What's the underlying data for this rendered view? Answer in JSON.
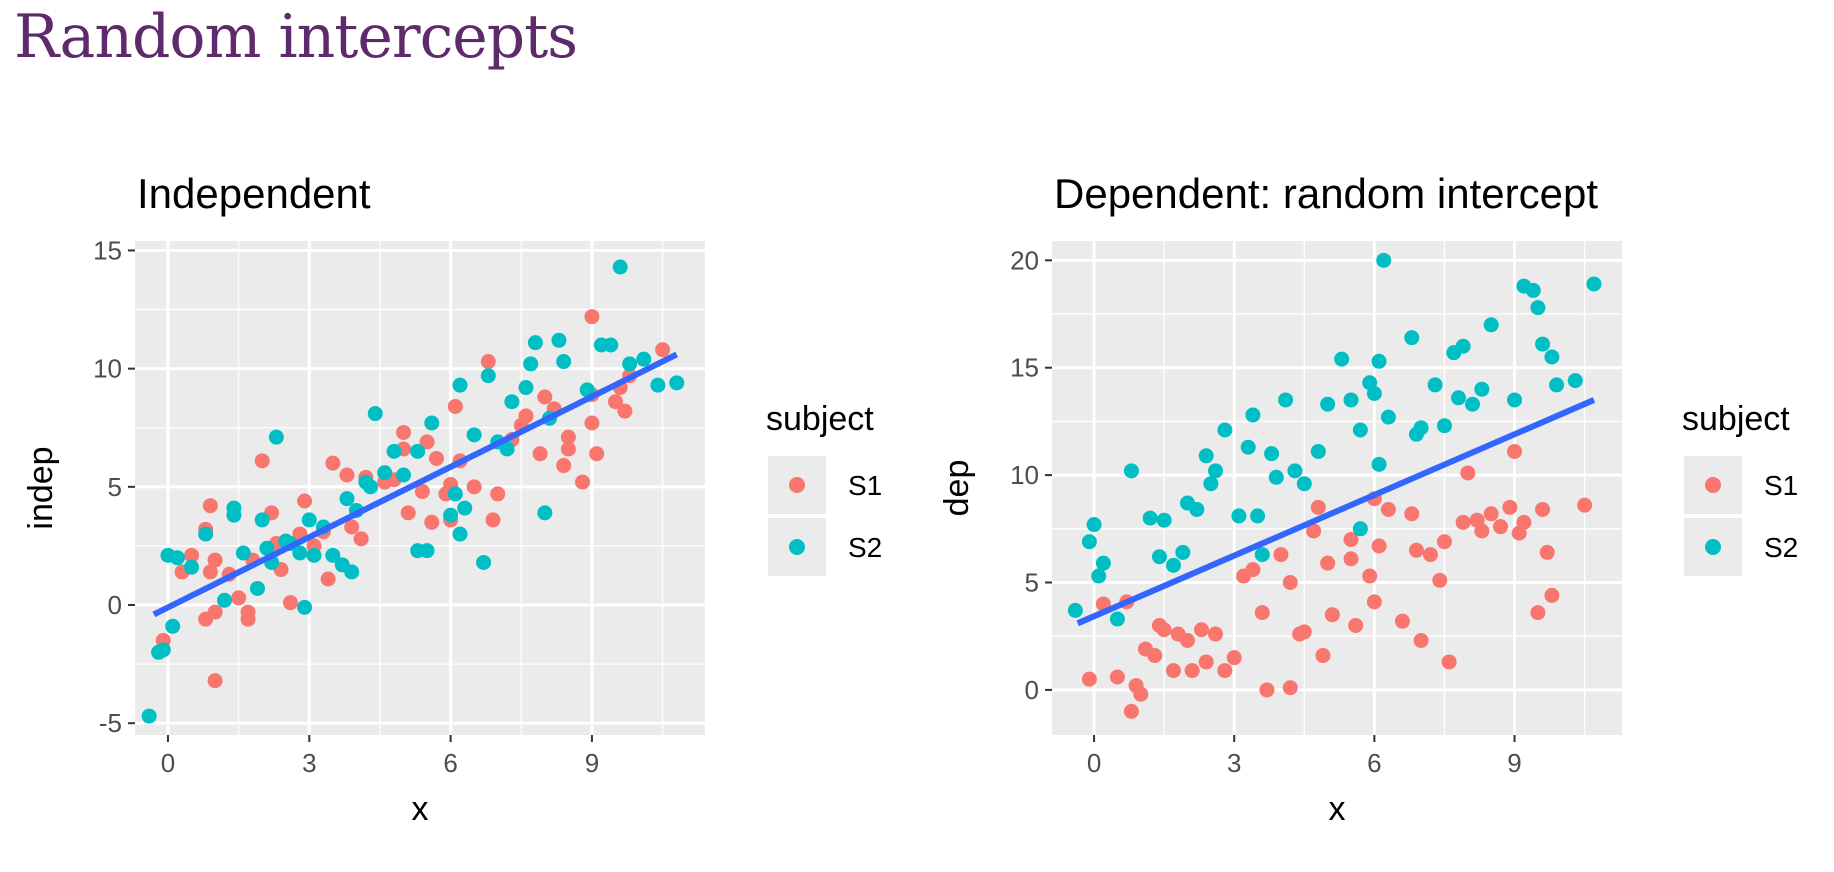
{
  "slide": {
    "title": "Random intercepts"
  },
  "colors": {
    "S1": "#f8766d",
    "S2": "#00bfc4",
    "fit_line": "#3366ff",
    "panel_bg": "#ebebeb",
    "grid": "#ffffff",
    "title": "#5e2a6c"
  },
  "chart_data": [
    {
      "type": "scatter",
      "title": "Independent",
      "xlabel": "x",
      "ylabel": "indep",
      "xlim": [
        -0.7,
        11.4
      ],
      "ylim": [
        -5.5,
        15.4
      ],
      "xticks": [
        0,
        3,
        6,
        9
      ],
      "xtick_labels": [
        "0",
        "3",
        "6",
        "9"
      ],
      "yticks": [
        -5,
        0,
        5,
        10,
        15
      ],
      "ytick_labels": [
        "-5",
        "0",
        "5",
        "10",
        "15"
      ],
      "grid": true,
      "legend": {
        "title": "subject",
        "placement": "right",
        "entries": [
          "S1",
          "S2"
        ]
      },
      "fit_line": {
        "x": [
          -0.3,
          10.8
        ],
        "y": [
          -0.4,
          10.6
        ]
      },
      "series": [
        {
          "name": "S1",
          "color": "#f8766d",
          "points": [
            [
              -0.1,
              -1.5
            ],
            [
              0.3,
              1.4
            ],
            [
              0.5,
              2.1
            ],
            [
              0.8,
              -0.6
            ],
            [
              0.8,
              3.2
            ],
            [
              0.9,
              1.4
            ],
            [
              0.9,
              4.2
            ],
            [
              1.0,
              -0.3
            ],
            [
              1.0,
              1.9
            ],
            [
              1.0,
              -3.2
            ],
            [
              1.3,
              1.3
            ],
            [
              1.5,
              0.3
            ],
            [
              1.7,
              -0.3
            ],
            [
              1.7,
              -0.6
            ],
            [
              1.8,
              1.9
            ],
            [
              2.0,
              6.1
            ],
            [
              2.2,
              3.9
            ],
            [
              2.3,
              2.6
            ],
            [
              2.4,
              1.5
            ],
            [
              2.5,
              2.7
            ],
            [
              2.6,
              0.1
            ],
            [
              2.8,
              3.0
            ],
            [
              2.9,
              4.4
            ],
            [
              3.1,
              2.5
            ],
            [
              3.3,
              3.1
            ],
            [
              3.4,
              1.1
            ],
            [
              3.5,
              6.0
            ],
            [
              3.8,
              5.5
            ],
            [
              3.9,
              3.3
            ],
            [
              4.1,
              2.8
            ],
            [
              4.2,
              5.4
            ],
            [
              4.6,
              5.2
            ],
            [
              4.8,
              5.3
            ],
            [
              5.0,
              7.3
            ],
            [
              5.0,
              6.6
            ],
            [
              5.1,
              3.9
            ],
            [
              5.4,
              4.8
            ],
            [
              5.5,
              6.9
            ],
            [
              5.6,
              3.5
            ],
            [
              5.7,
              6.2
            ],
            [
              5.9,
              4.7
            ],
            [
              6.0,
              5.1
            ],
            [
              6.0,
              3.6
            ],
            [
              6.1,
              8.4
            ],
            [
              6.2,
              6.1
            ],
            [
              6.5,
              5.0
            ],
            [
              6.8,
              10.3
            ],
            [
              6.9,
              3.6
            ],
            [
              7.0,
              4.7
            ],
            [
              7.3,
              7.0
            ],
            [
              7.5,
              7.6
            ],
            [
              7.6,
              8.0
            ],
            [
              7.9,
              6.4
            ],
            [
              8.0,
              8.8
            ],
            [
              8.2,
              8.3
            ],
            [
              8.4,
              5.9
            ],
            [
              8.5,
              7.1
            ],
            [
              8.5,
              6.6
            ],
            [
              8.8,
              5.2
            ],
            [
              9.0,
              12.2
            ],
            [
              9.0,
              7.7
            ],
            [
              9.0,
              8.9
            ],
            [
              9.1,
              6.4
            ],
            [
              9.5,
              8.6
            ],
            [
              9.6,
              9.2
            ],
            [
              9.7,
              8.2
            ],
            [
              9.8,
              9.7
            ],
            [
              10.5,
              10.8
            ]
          ]
        },
        {
          "name": "S2",
          "color": "#00bfc4",
          "points": [
            [
              -0.4,
              -4.7
            ],
            [
              -0.2,
              -2.0
            ],
            [
              -0.1,
              -1.9
            ],
            [
              0.0,
              2.1
            ],
            [
              0.1,
              -0.9
            ],
            [
              0.2,
              2.0
            ],
            [
              0.5,
              1.6
            ],
            [
              0.8,
              3.0
            ],
            [
              1.2,
              0.2
            ],
            [
              1.4,
              3.8
            ],
            [
              1.4,
              4.1
            ],
            [
              1.6,
              2.2
            ],
            [
              1.9,
              0.7
            ],
            [
              2.0,
              3.6
            ],
            [
              2.2,
              1.8
            ],
            [
              2.3,
              7.1
            ],
            [
              2.5,
              2.7
            ],
            [
              2.6,
              2.6
            ],
            [
              2.8,
              2.2
            ],
            [
              2.9,
              -0.1
            ],
            [
              3.0,
              3.6
            ],
            [
              3.1,
              2.1
            ],
            [
              3.3,
              3.3
            ],
            [
              3.5,
              2.1
            ],
            [
              3.7,
              1.7
            ],
            [
              3.8,
              4.5
            ],
            [
              3.9,
              1.4
            ],
            [
              4.0,
              4.0
            ],
            [
              4.3,
              5.0
            ],
            [
              4.4,
              8.1
            ],
            [
              4.6,
              5.6
            ],
            [
              4.8,
              6.5
            ],
            [
              5.0,
              5.5
            ],
            [
              5.3,
              2.3
            ],
            [
              5.5,
              2.3
            ],
            [
              5.6,
              7.7
            ],
            [
              6.0,
              3.8
            ],
            [
              6.1,
              4.7
            ],
            [
              6.2,
              3.0
            ],
            [
              6.3,
              4.1
            ],
            [
              6.5,
              7.2
            ],
            [
              6.7,
              1.8
            ],
            [
              6.8,
              9.7
            ],
            [
              7.0,
              6.9
            ],
            [
              7.2,
              6.6
            ],
            [
              7.3,
              8.6
            ],
            [
              7.6,
              9.2
            ],
            [
              7.8,
              11.1
            ],
            [
              8.0,
              3.9
            ],
            [
              8.1,
              7.9
            ],
            [
              8.3,
              11.2
            ],
            [
              8.4,
              10.3
            ],
            [
              8.9,
              9.1
            ],
            [
              9.2,
              11.0
            ],
            [
              9.4,
              11.0
            ],
            [
              9.6,
              14.3
            ],
            [
              9.8,
              10.2
            ],
            [
              10.1,
              10.4
            ],
            [
              10.4,
              9.3
            ],
            [
              10.8,
              9.4
            ],
            [
              6.2,
              9.3
            ],
            [
              5.3,
              6.5
            ],
            [
              4.2,
              5.2
            ],
            [
              7.7,
              10.2
            ],
            [
              2.1,
              2.4
            ]
          ]
        }
      ]
    },
    {
      "type": "scatter",
      "title": "Dependent: random intercept",
      "xlabel": "x",
      "ylabel": "dep",
      "xlim": [
        -0.9,
        11.3
      ],
      "ylim": [
        -2.1,
        20.9
      ],
      "xticks": [
        0,
        3,
        6,
        9
      ],
      "xtick_labels": [
        "0",
        "3",
        "6",
        "9"
      ],
      "yticks": [
        0,
        5,
        10,
        15,
        20
      ],
      "ytick_labels": [
        "0",
        "5",
        "10",
        "15",
        "20"
      ],
      "grid": true,
      "legend": {
        "title": "subject",
        "placement": "right",
        "entries": [
          "S1",
          "S2"
        ]
      },
      "fit_line": {
        "x": [
          -0.35,
          10.7
        ],
        "y": [
          3.1,
          13.5
        ]
      },
      "series": [
        {
          "name": "S1",
          "color": "#f8766d",
          "points": [
            [
              -0.1,
              0.5
            ],
            [
              0.2,
              4.0
            ],
            [
              0.5,
              0.6
            ],
            [
              0.7,
              4.1
            ],
            [
              0.8,
              -1.0
            ],
            [
              0.9,
              0.2
            ],
            [
              1.0,
              -0.2
            ],
            [
              1.1,
              1.9
            ],
            [
              1.3,
              1.6
            ],
            [
              1.4,
              3.0
            ],
            [
              1.5,
              2.8
            ],
            [
              1.7,
              0.9
            ],
            [
              1.8,
              2.6
            ],
            [
              2.0,
              2.3
            ],
            [
              2.1,
              0.9
            ],
            [
              2.3,
              2.8
            ],
            [
              2.4,
              1.3
            ],
            [
              2.6,
              2.6
            ],
            [
              2.8,
              0.9
            ],
            [
              3.0,
              1.5
            ],
            [
              3.2,
              5.3
            ],
            [
              3.4,
              5.6
            ],
            [
              3.6,
              3.6
            ],
            [
              3.7,
              0.0
            ],
            [
              4.0,
              6.3
            ],
            [
              4.2,
              5.0
            ],
            [
              4.2,
              0.1
            ],
            [
              4.4,
              2.6
            ],
            [
              4.5,
              2.7
            ],
            [
              4.7,
              7.4
            ],
            [
              4.9,
              1.6
            ],
            [
              5.0,
              5.9
            ],
            [
              5.1,
              3.5
            ],
            [
              5.5,
              7.0
            ],
            [
              5.5,
              6.1
            ],
            [
              5.6,
              3.0
            ],
            [
              5.9,
              5.3
            ],
            [
              6.0,
              4.1
            ],
            [
              6.1,
              6.7
            ],
            [
              6.3,
              8.4
            ],
            [
              6.6,
              3.2
            ],
            [
              6.8,
              8.2
            ],
            [
              6.9,
              6.5
            ],
            [
              7.0,
              2.3
            ],
            [
              7.2,
              6.3
            ],
            [
              7.4,
              5.1
            ],
            [
              7.5,
              6.9
            ],
            [
              7.6,
              1.3
            ],
            [
              7.9,
              7.8
            ],
            [
              8.0,
              10.1
            ],
            [
              8.2,
              7.9
            ],
            [
              8.3,
              7.4
            ],
            [
              8.5,
              8.2
            ],
            [
              8.7,
              7.6
            ],
            [
              8.9,
              8.5
            ],
            [
              9.0,
              11.1
            ],
            [
              9.1,
              7.3
            ],
            [
              9.2,
              7.8
            ],
            [
              9.5,
              3.6
            ],
            [
              9.6,
              8.4
            ],
            [
              9.7,
              6.4
            ],
            [
              9.8,
              4.4
            ],
            [
              10.5,
              8.6
            ],
            [
              6.0,
              8.9
            ],
            [
              4.8,
              8.5
            ]
          ]
        },
        {
          "name": "S2",
          "color": "#00bfc4",
          "points": [
            [
              -0.4,
              3.7
            ],
            [
              -0.1,
              6.9
            ],
            [
              0.0,
              7.7
            ],
            [
              0.1,
              5.3
            ],
            [
              0.2,
              5.9
            ],
            [
              0.5,
              3.3
            ],
            [
              0.8,
              10.2
            ],
            [
              1.2,
              8.0
            ],
            [
              1.4,
              6.2
            ],
            [
              1.5,
              7.9
            ],
            [
              1.7,
              5.8
            ],
            [
              1.9,
              6.4
            ],
            [
              2.0,
              8.7
            ],
            [
              2.2,
              8.4
            ],
            [
              2.4,
              10.9
            ],
            [
              2.5,
              9.6
            ],
            [
              2.6,
              10.2
            ],
            [
              2.8,
              12.1
            ],
            [
              3.1,
              8.1
            ],
            [
              3.3,
              11.3
            ],
            [
              3.4,
              12.8
            ],
            [
              3.5,
              8.1
            ],
            [
              3.6,
              6.3
            ],
            [
              3.8,
              11.0
            ],
            [
              3.9,
              9.9
            ],
            [
              4.1,
              13.5
            ],
            [
              4.3,
              10.2
            ],
            [
              4.5,
              9.6
            ],
            [
              4.8,
              11.1
            ],
            [
              5.0,
              13.3
            ],
            [
              5.3,
              15.4
            ],
            [
              5.5,
              13.5
            ],
            [
              5.7,
              12.1
            ],
            [
              5.9,
              14.3
            ],
            [
              6.0,
              13.8
            ],
            [
              6.1,
              15.3
            ],
            [
              6.2,
              20.0
            ],
            [
              6.3,
              12.7
            ],
            [
              6.8,
              16.4
            ],
            [
              6.9,
              11.9
            ],
            [
              7.0,
              12.2
            ],
            [
              7.3,
              14.2
            ],
            [
              7.5,
              12.3
            ],
            [
              7.7,
              15.7
            ],
            [
              7.8,
              13.6
            ],
            [
              7.9,
              16.0
            ],
            [
              8.1,
              13.3
            ],
            [
              8.3,
              14.0
            ],
            [
              8.5,
              17.0
            ],
            [
              9.0,
              13.5
            ],
            [
              9.2,
              18.8
            ],
            [
              9.4,
              18.6
            ],
            [
              9.5,
              17.8
            ],
            [
              9.6,
              16.1
            ],
            [
              9.8,
              15.5
            ],
            [
              9.9,
              14.2
            ],
            [
              10.3,
              14.4
            ],
            [
              10.7,
              18.9
            ],
            [
              6.1,
              10.5
            ],
            [
              5.7,
              7.5
            ]
          ]
        }
      ]
    }
  ]
}
